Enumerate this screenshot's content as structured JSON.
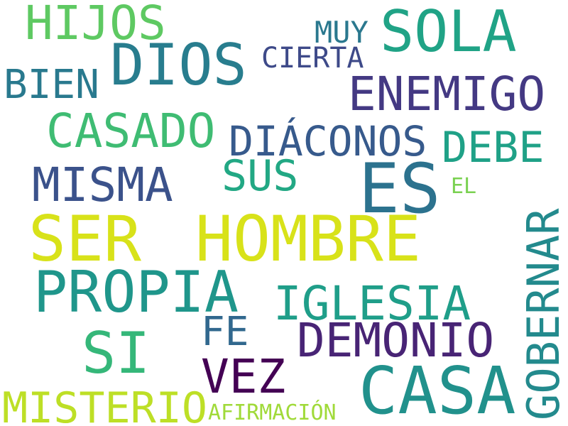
{
  "words": [
    {
      "id": "ser",
      "text": "SER",
      "color": "#d8e219"
    },
    {
      "id": "hombre",
      "text": "HOMBRE",
      "color": "#d8e219"
    },
    {
      "id": "casa",
      "text": "CASA",
      "color": "#21918c"
    },
    {
      "id": "es",
      "text": "ES",
      "color": "#2c728e"
    },
    {
      "id": "dios",
      "text": "DIOS",
      "color": "#287d8e"
    },
    {
      "id": "propia",
      "text": "PROPIA",
      "color": "#1f968b"
    },
    {
      "id": "sola",
      "text": "SOLA",
      "color": "#20a386"
    },
    {
      "id": "si",
      "text": "SI",
      "color": "#35b779"
    },
    {
      "id": "enemigo",
      "text": "ENEMIGO",
      "color": "#443983"
    },
    {
      "id": "demonio",
      "text": "DEMONIO",
      "color": "#482475"
    },
    {
      "id": "gobernar",
      "text": "GOBERNAR",
      "color": "#238a8d"
    },
    {
      "id": "iglesia",
      "text": "IGLESIA",
      "color": "#1f9e89"
    },
    {
      "id": "mismo",
      "text": "MISMA",
      "color": "#3b528b"
    },
    {
      "id": "hijos",
      "text": "HIJOS",
      "color": "#5ec962"
    },
    {
      "id": "casado",
      "text": "CASADO",
      "color": "#3fbc73"
    },
    {
      "id": "diaconos",
      "text": "DIÁCONOS",
      "color": "#375a8c"
    },
    {
      "id": "misterio",
      "text": "MISTERIO",
      "color": "#bddf26"
    },
    {
      "id": "vez",
      "text": "VEZ",
      "color": "#440154"
    },
    {
      "id": "sus",
      "text": "SUS",
      "color": "#22a884"
    },
    {
      "id": "debe",
      "text": "DEBE",
      "color": "#1fa187"
    },
    {
      "id": "bien",
      "text": "BIEN",
      "color": "#29798e"
    },
    {
      "id": "fe",
      "text": "FE",
      "color": "#31688e"
    },
    {
      "id": "cierta",
      "text": "CIERTA",
      "color": "#3e4a89"
    },
    {
      "id": "muy",
      "text": "MUY",
      "color": "#2a788e"
    },
    {
      "id": "afirmacion",
      "text": "AFIRMACIÓN",
      "color": "#a0da39"
    },
    {
      "id": "el",
      "text": "EL",
      "color": "#7ad151"
    }
  ]
}
